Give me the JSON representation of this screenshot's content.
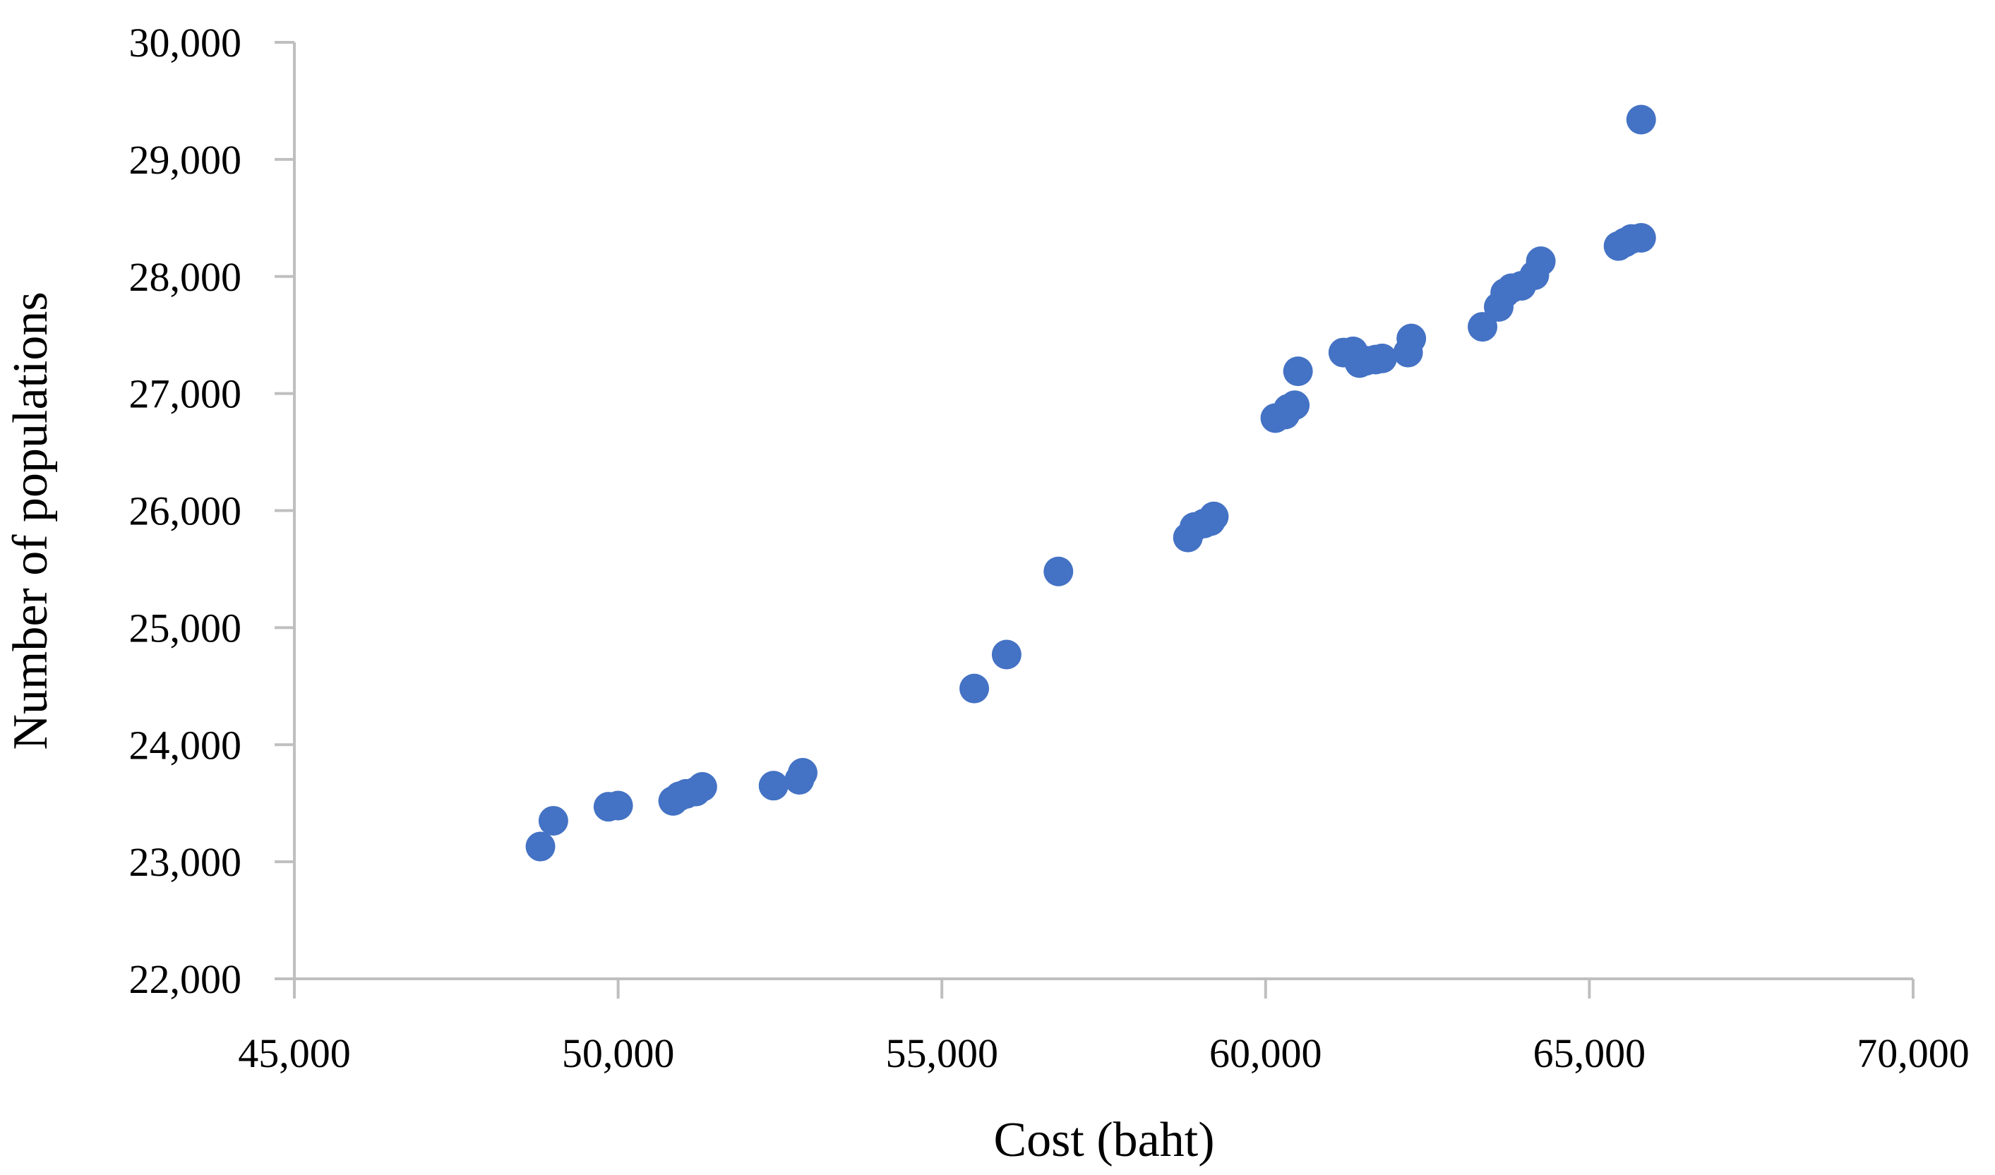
{
  "chart_data": {
    "type": "scatter",
    "title": "",
    "xlabel": "Cost (baht)",
    "ylabel": "Number of populations",
    "xlim": [
      45000,
      70000
    ],
    "ylim": [
      22000,
      30000
    ],
    "x_ticks": [
      "45,000",
      "50,000",
      "55,000",
      "60,000",
      "65,000",
      "70,000"
    ],
    "y_ticks": [
      "22,000",
      "23,000",
      "24,000",
      "25,000",
      "26,000",
      "27,000",
      "28,000",
      "29,000",
      "30,000"
    ],
    "grid": false,
    "legend": "none",
    "marker_color": "#4472C4",
    "axis_color": "#BFBFBF",
    "series": [
      {
        "points": [
          [
            48800,
            23130
          ],
          [
            49000,
            23350
          ],
          [
            49850,
            23470
          ],
          [
            50000,
            23480
          ],
          [
            50850,
            23520
          ],
          [
            50950,
            23560
          ],
          [
            51050,
            23580
          ],
          [
            51200,
            23600
          ],
          [
            51300,
            23640
          ],
          [
            52400,
            23650
          ],
          [
            52800,
            23700
          ],
          [
            52850,
            23760
          ],
          [
            55500,
            24480
          ],
          [
            56000,
            24770
          ],
          [
            56800,
            25480
          ],
          [
            58800,
            25770
          ],
          [
            58900,
            25860
          ],
          [
            59050,
            25890
          ],
          [
            59150,
            25910
          ],
          [
            59200,
            25950
          ],
          [
            60150,
            26790
          ],
          [
            60300,
            26820
          ],
          [
            60350,
            26870
          ],
          [
            60450,
            26900
          ],
          [
            60500,
            27190
          ],
          [
            61200,
            27350
          ],
          [
            61350,
            27360
          ],
          [
            61450,
            27260
          ],
          [
            61550,
            27280
          ],
          [
            61700,
            27290
          ],
          [
            61800,
            27300
          ],
          [
            62200,
            27350
          ],
          [
            62250,
            27470
          ],
          [
            63350,
            27570
          ],
          [
            63600,
            27740
          ],
          [
            63700,
            27860
          ],
          [
            63800,
            27900
          ],
          [
            63950,
            27920
          ],
          [
            64150,
            28010
          ],
          [
            64250,
            28130
          ],
          [
            65450,
            28260
          ],
          [
            65550,
            28290
          ],
          [
            65650,
            28320
          ],
          [
            65800,
            28330
          ],
          [
            65800,
            29340
          ]
        ]
      }
    ]
  }
}
